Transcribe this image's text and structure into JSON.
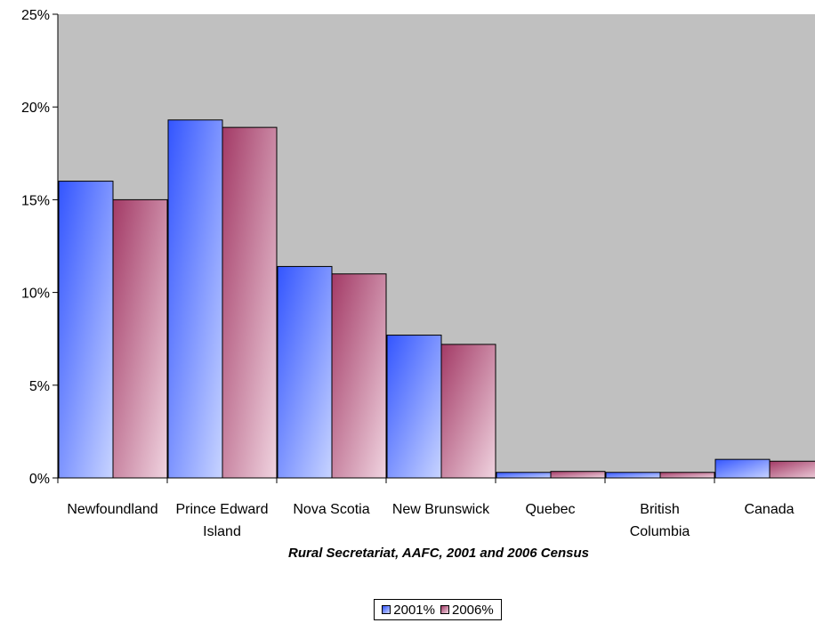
{
  "chart_data": {
    "type": "bar",
    "categories": [
      [
        "Newfoundland"
      ],
      [
        "Prince Edward",
        "Island"
      ],
      [
        "Nova Scotia"
      ],
      [
        "New Brunswick"
      ],
      [
        "Quebec"
      ],
      [
        "British",
        "Columbia"
      ],
      [
        "Canada"
      ]
    ],
    "series": [
      {
        "name": "2001%",
        "values": [
          16.0,
          19.3,
          11.4,
          7.7,
          0.3,
          0.3,
          1.0
        ],
        "color_dark": "#3355ff",
        "color_light": "#c8d4ff"
      },
      {
        "name": "2006%",
        "values": [
          15.0,
          18.9,
          11.0,
          7.2,
          0.35,
          0.3,
          0.9
        ],
        "color_dark": "#a33a66",
        "color_light": "#f0d4e0"
      }
    ],
    "ylim": [
      0,
      25
    ],
    "yticks": [
      "0%",
      "5%",
      "10%",
      "15%",
      "20%",
      "25%"
    ],
    "ytick_values": [
      0,
      5,
      10,
      15,
      20,
      25
    ],
    "plot_background": "#c0c0c0",
    "grid": false,
    "legend_position": "bottom",
    "source_note": "Rural Secretariat, AAFC, 2001 and 2006 Census"
  }
}
